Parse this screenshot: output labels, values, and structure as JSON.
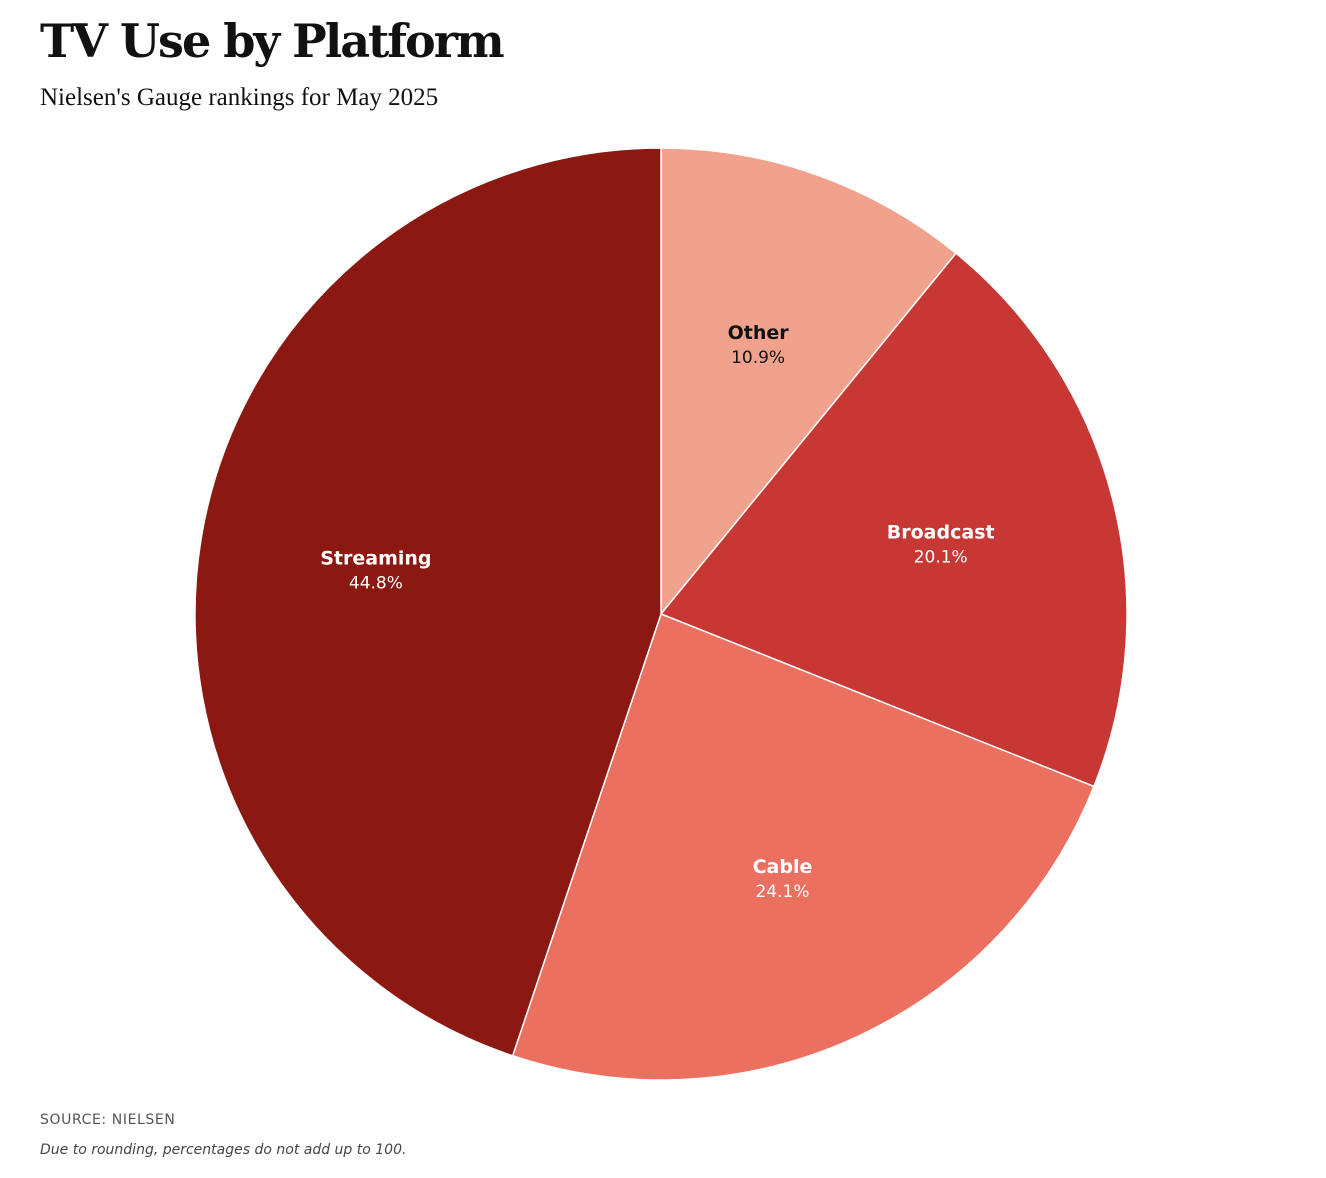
{
  "header": {
    "title": "TV Use by Platform",
    "subtitle": "Nielsen's Gauge rankings for May 2025"
  },
  "chart_data": {
    "type": "pie",
    "title": "TV Use by Platform",
    "subtitle": "Nielsen's Gauge rankings for May 2025",
    "start_angle_deg": 0,
    "direction": "clockwise",
    "slices": [
      {
        "name": "Other",
        "value": 10.9,
        "value_label": "10.9%",
        "color": "#f0a28c",
        "label_color": "#111111"
      },
      {
        "name": "Broadcast",
        "value": 20.1,
        "value_label": "20.1%",
        "color": "#c73733",
        "label_color": "#ffffff"
      },
      {
        "name": "Cable",
        "value": 24.1,
        "value_label": "24.1%",
        "color": "#ec7060",
        "label_color": "#ffffff"
      },
      {
        "name": "Streaming",
        "value": 44.8,
        "value_label": "44.8%",
        "color": "#8b1811",
        "label_color": "#ffffff"
      }
    ]
  },
  "footer": {
    "source": "SOURCE: NIELSEN",
    "note": "Due to rounding, percentages do not add up to 100."
  }
}
